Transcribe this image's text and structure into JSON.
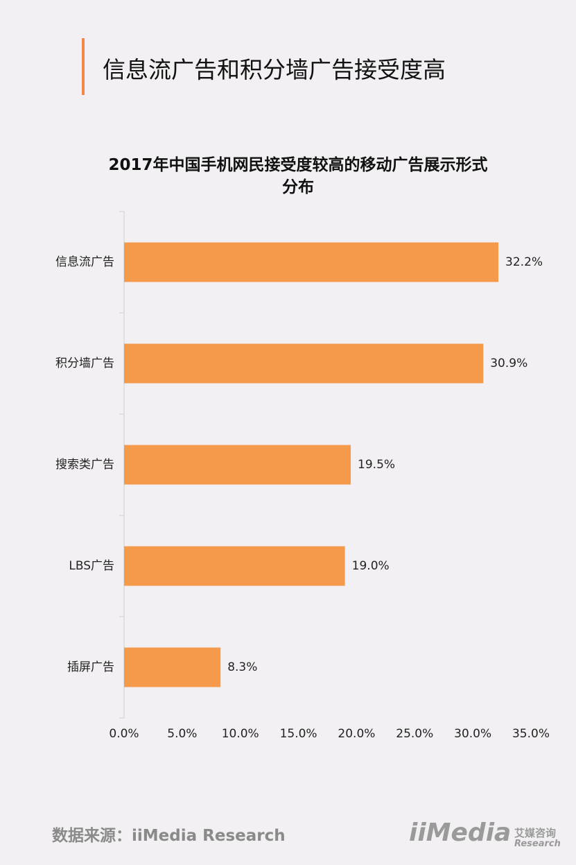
{
  "header": {
    "title": "信息流广告和积分墙广告接受度高"
  },
  "chart_data": {
    "type": "hbar",
    "title": "2017年中国手机网民接受度较高的移动广告展示形式分布",
    "categories": [
      "信息流广告",
      "积分墙广告",
      "搜索类广告",
      "LBS广告",
      "插屏广告"
    ],
    "values": [
      32.2,
      30.9,
      19.5,
      19.0,
      8.3
    ],
    "value_labels": [
      "32.2%",
      "30.9%",
      "19.5%",
      "19.0%",
      "8.3%"
    ],
    "color": "#f5994a",
    "xlim": [
      0,
      35
    ],
    "xticks": [
      {
        "value": 0,
        "label": "0.0%"
      },
      {
        "value": 5,
        "label": "5.0%"
      },
      {
        "value": 10,
        "label": "10.0%"
      },
      {
        "value": 15,
        "label": "15.0%"
      },
      {
        "value": 20,
        "label": "20.0%"
      },
      {
        "value": 25,
        "label": "25.0%"
      },
      {
        "value": 30,
        "label": "30.0%"
      },
      {
        "value": 35,
        "label": "35.0%"
      }
    ]
  },
  "footer": {
    "source": "数据来源：iiMedia Research",
    "logo": "iiMedia",
    "logo_cn": "艾媒咨询",
    "logo_en": "Research"
  }
}
